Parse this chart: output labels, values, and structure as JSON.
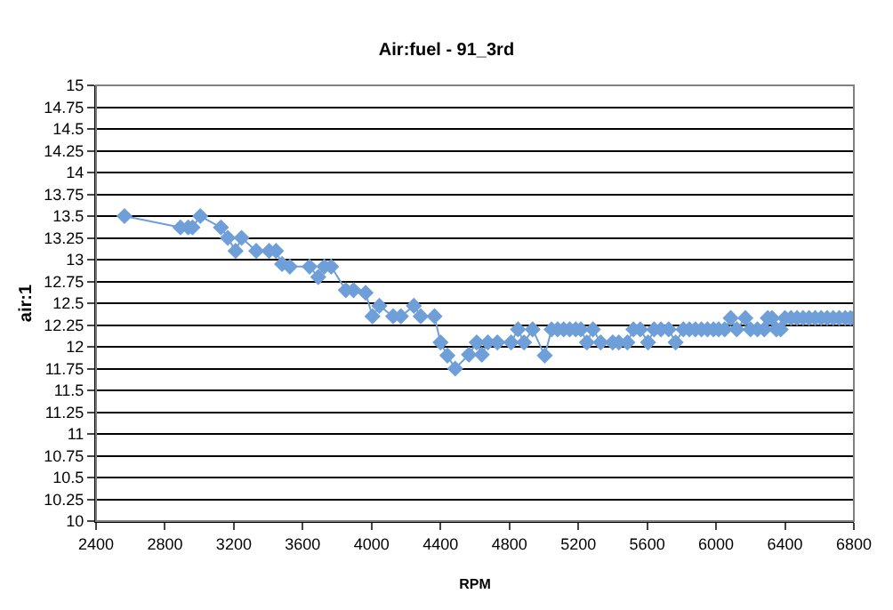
{
  "chart_data": {
    "type": "line",
    "title": "Air:fuel - 91_3rd",
    "xlabel": "RPM",
    "ylabel": "air:1",
    "x": [
      2565,
      2890,
      2935,
      2960,
      3005,
      3125,
      3165,
      3210,
      3245,
      3330,
      3405,
      3445,
      3480,
      3525,
      3640,
      3690,
      3725,
      3765,
      3850,
      3895,
      3965,
      4005,
      4045,
      4125,
      4170,
      4245,
      4285,
      4365,
      4400,
      4440,
      4485,
      4565,
      4610,
      4640,
      4675,
      4730,
      4810,
      4850,
      4885,
      4935,
      5005,
      5045,
      5080,
      5115,
      5150,
      5185,
      5215,
      5250,
      5285,
      5330,
      5400,
      5435,
      5485,
      5520,
      5560,
      5605,
      5640,
      5680,
      5725,
      5765,
      5810,
      5845,
      5880,
      5915,
      5950,
      5985,
      6015,
      6050,
      6085,
      6120,
      6170,
      6200,
      6240,
      6280,
      6300,
      6325,
      6350,
      6375,
      6400,
      6435,
      6470,
      6505,
      6540,
      6575,
      6610,
      6645,
      6680,
      6715,
      6750,
      6780,
      6800
    ],
    "series": [
      {
        "color": "#6f9fd8",
        "values": [
          13.5,
          13.37,
          13.37,
          13.37,
          13.5,
          13.37,
          13.25,
          13.1,
          13.25,
          13.1,
          13.1,
          13.1,
          12.95,
          12.92,
          12.92,
          12.8,
          12.92,
          12.92,
          12.65,
          12.65,
          12.62,
          12.35,
          12.47,
          12.35,
          12.35,
          12.47,
          12.35,
          12.35,
          12.05,
          11.9,
          11.75,
          11.91,
          12.05,
          11.91,
          12.05,
          12.05,
          12.05,
          12.2,
          12.05,
          12.2,
          11.9,
          12.2,
          12.2,
          12.2,
          12.2,
          12.2,
          12.2,
          12.05,
          12.2,
          12.05,
          12.05,
          12.05,
          12.05,
          12.2,
          12.2,
          12.05,
          12.2,
          12.2,
          12.2,
          12.05,
          12.2,
          12.2,
          12.2,
          12.2,
          12.2,
          12.2,
          12.2,
          12.2,
          12.33,
          12.2,
          12.33,
          12.2,
          12.2,
          12.2,
          12.33,
          12.33,
          12.2,
          12.2,
          12.33,
          12.33,
          12.33,
          12.33,
          12.33,
          12.33,
          12.33,
          12.33,
          12.33,
          12.33,
          12.33,
          12.33,
          12.33
        ]
      }
    ],
    "xlim": [
      2400,
      6800
    ],
    "xticks": [
      2400,
      2800,
      3200,
      3600,
      4000,
      4400,
      4800,
      5200,
      5600,
      6000,
      6400,
      6800
    ],
    "ylim": [
      10,
      15
    ],
    "yticks": [
      10,
      10.25,
      10.5,
      10.75,
      11,
      11.25,
      11.5,
      11.75,
      12,
      12.25,
      12.5,
      12.75,
      13,
      13.25,
      13.5,
      13.75,
      14,
      14.25,
      14.5,
      14.75,
      15
    ],
    "grid": "y",
    "legend": false,
    "marker": "diamond",
    "line_style": "solid"
  }
}
